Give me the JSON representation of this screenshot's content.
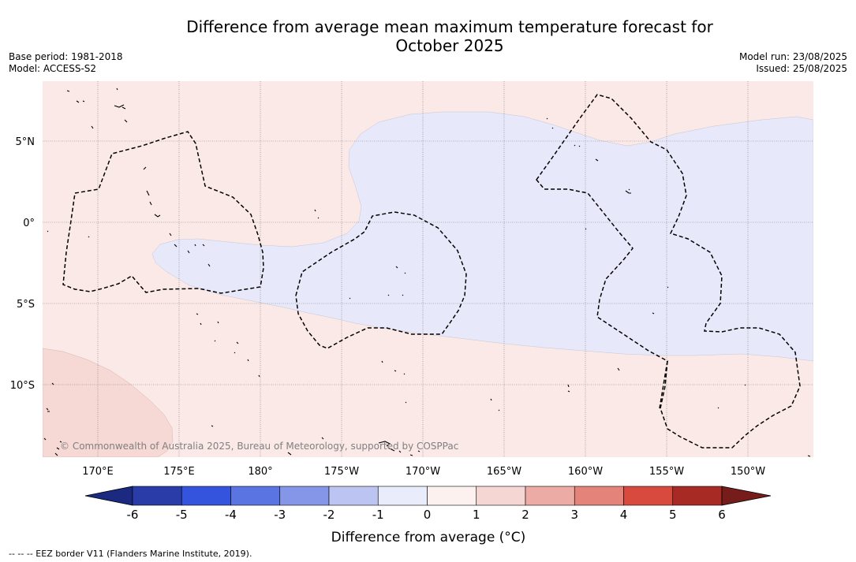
{
  "title": {
    "line1": "Difference from average mean maximum temperature forecast for",
    "line2": "October 2025"
  },
  "left_meta": {
    "base_period": "Base period: 1981-2018",
    "model": "Model: ACCESS-S2"
  },
  "right_meta": {
    "model_run": "Model run: 23/08/2025",
    "issued": "Issued: 25/08/2025"
  },
  "map": {
    "lat_labels": [
      "5°N",
      "0°",
      "5°S",
      "10°S"
    ],
    "lon_labels": [
      "170°E",
      "175°E",
      "180°",
      "175°W",
      "170°W",
      "165°W",
      "160°W",
      "155°W",
      "150°W"
    ],
    "copyright": "© Commonwealth of Australia 2025, Bureau of Meteorology, supported by COSPPac",
    "colors": {
      "background_anomaly": "#fbe9e7",
      "cool_anomaly": "#e7e9fa",
      "warm_anomaly": "#f6d8d5",
      "eez_border": "#000000",
      "gridline": "#777777"
    }
  },
  "colorbar": {
    "ticks": [
      "-6",
      "-5",
      "-4",
      "-3",
      "-2",
      "-1",
      "0",
      "1",
      "2",
      "3",
      "4",
      "5",
      "6"
    ],
    "colors": [
      "#2a3ca8",
      "#3554dd",
      "#5a74e2",
      "#8596e8",
      "#bcc5f1",
      "#e9ecfb",
      "#fdf1ef",
      "#f6d6d2",
      "#ecaca5",
      "#e38379",
      "#d84a3d",
      "#a82a24"
    ],
    "under_color": "#1b2a80",
    "over_color": "#761c1a",
    "label": "Difference from average (°C)"
  },
  "footer": "--  --  -- EEZ border V11 (Flanders Marine Institute, 2019)."
}
